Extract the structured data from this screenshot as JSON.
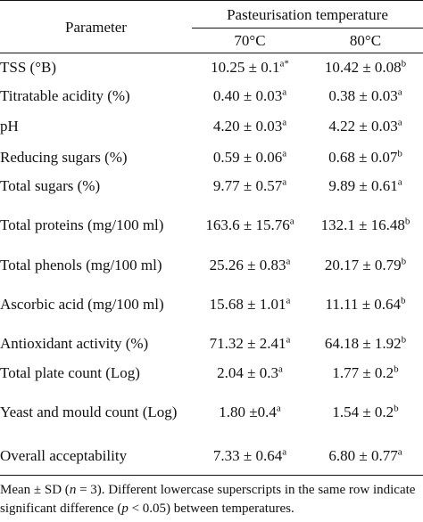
{
  "table": {
    "header": {
      "parameter": "Parameter",
      "group": "Pasteurisation temperature",
      "columns": [
        "70°C",
        "80°C"
      ]
    },
    "rows": [
      {
        "parameter": "TSS (°B)",
        "cells": [
          {
            "value": "10.25 ± 0.1",
            "sup": "a*"
          },
          {
            "value": "10.42 ± 0.08",
            "sup": "b"
          }
        ]
      },
      {
        "parameter": "Titratable acidity (%)",
        "cells": [
          {
            "value": "0.40 ± 0.03",
            "sup": "a"
          },
          {
            "value": "0.38 ± 0.03",
            "sup": "a"
          }
        ]
      },
      {
        "parameter": "pH",
        "cells": [
          {
            "value": "4.20 ± 0.03",
            "sup": "a"
          },
          {
            "value": "4.22 ± 0.03",
            "sup": "a"
          }
        ]
      },
      {
        "parameter": "Reducing sugars (%)",
        "cells": [
          {
            "value": "0.59 ± 0.06",
            "sup": "a"
          },
          {
            "value": "0.68 ± 0.07",
            "sup": "b"
          }
        ]
      },
      {
        "parameter": "Total sugars (%)",
        "cells": [
          {
            "value": "9.77 ± 0.57",
            "sup": "a"
          },
          {
            "value": "9.89 ± 0.61",
            "sup": "a"
          }
        ]
      },
      {
        "parameter": "Total proteins (mg/100 ml)",
        "cells": [
          {
            "value": "163.6 ± 15.76",
            "sup": "a"
          },
          {
            "value": "132.1 ± 16.48",
            "sup": "b"
          }
        ]
      },
      {
        "parameter": "Total phenols (mg/100 ml)",
        "cells": [
          {
            "value": "25.26 ± 0.83",
            "sup": "a"
          },
          {
            "value": "20.17 ± 0.79",
            "sup": "b"
          }
        ]
      },
      {
        "parameter": "Ascorbic acid (mg/100 ml)",
        "cells": [
          {
            "value": "15.68 ± 1.01",
            "sup": "a"
          },
          {
            "value": "11.11 ± 0.64",
            "sup": "b"
          }
        ]
      },
      {
        "parameter": "Antioxidant activity (%)",
        "cells": [
          {
            "value": "71.32 ± 2.41",
            "sup": "a"
          },
          {
            "value": "64.18 ± 1.92",
            "sup": "b"
          }
        ]
      },
      {
        "parameter": "Total plate count (Log)",
        "cells": [
          {
            "value": "2.04 ± 0.3",
            "sup": "a"
          },
          {
            "value": "1.77 ± 0.2",
            "sup": "b"
          }
        ]
      },
      {
        "parameter": "Yeast and mould count (Log)",
        "cells": [
          {
            "value": "1.80 ±0.4",
            "sup": "a"
          },
          {
            "value": "1.54 ± 0.2",
            "sup": "b"
          }
        ]
      },
      {
        "parameter": "Overall acceptability",
        "cells": [
          {
            "value": "7.33 ± 0.64",
            "sup": "a"
          },
          {
            "value": "6.80 ± 0.77",
            "sup": "a"
          }
        ]
      }
    ]
  },
  "footnote": {
    "parts": [
      "Mean ± SD (",
      "n",
      " = 3). Different lowercase superscripts in the same row indicate significant difference (",
      "p",
      " < 0.05) between temperatures."
    ],
    "italic": [
      false,
      true,
      false,
      true,
      false
    ]
  }
}
